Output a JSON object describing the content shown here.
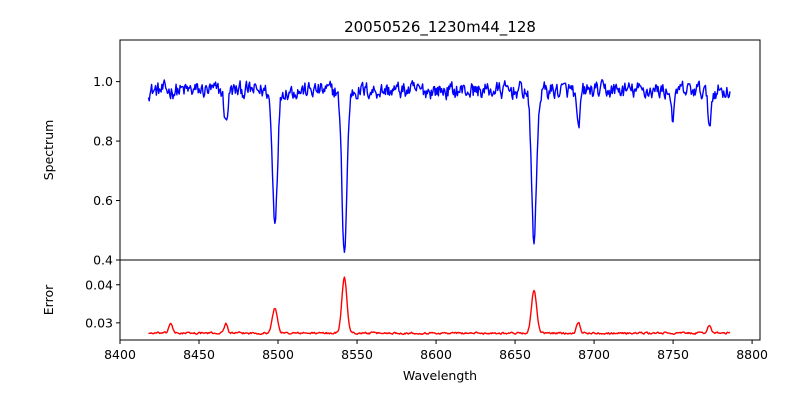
{
  "chart_data": {
    "type": "line",
    "title": "20050526_1230m44_128",
    "xlabel": "Wavelength",
    "xlim": [
      8400,
      8805
    ],
    "x_ticks": [
      8400,
      8450,
      8500,
      8550,
      8600,
      8650,
      8700,
      8750,
      8800
    ],
    "x_range": [
      8418,
      8786
    ],
    "panels": [
      {
        "name": "spectrum",
        "ylabel": "Spectrum",
        "ylim": [
          0.4,
          1.14
        ],
        "y_ticks": [
          0.4,
          0.6,
          0.8,
          1.0
        ],
        "color": "#0000ff",
        "baseline": 0.97,
        "noise": 0.045,
        "features": [
          {
            "center": 8498,
            "value": 0.54
          },
          {
            "center": 8542,
            "value": 0.43
          },
          {
            "center": 8662,
            "value": 0.47
          },
          {
            "center": 8467,
            "value": 0.86
          },
          {
            "center": 8690,
            "value": 0.83
          },
          {
            "center": 8750,
            "value": 0.88
          },
          {
            "center": 8773,
            "value": 0.86
          }
        ]
      },
      {
        "name": "error",
        "ylabel": "Error",
        "ylim": [
          0.0255,
          0.0465
        ],
        "y_ticks": [
          0.03,
          0.04
        ],
        "color": "#ff0000",
        "baseline": 0.0273,
        "noise": 0.0004,
        "features": [
          {
            "center": 8498,
            "value": 0.0338
          },
          {
            "center": 8542,
            "value": 0.0418
          },
          {
            "center": 8662,
            "value": 0.0386
          },
          {
            "center": 8432,
            "value": 0.03
          },
          {
            "center": 8467,
            "value": 0.0298
          },
          {
            "center": 8690,
            "value": 0.0303
          },
          {
            "center": 8773,
            "value": 0.0295
          }
        ]
      }
    ]
  }
}
